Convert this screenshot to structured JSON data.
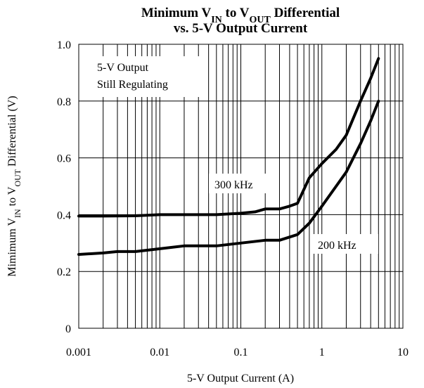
{
  "chart_data": {
    "type": "line",
    "title_line1": "Minimum V_IN to V_OUT Differential",
    "title_line2": "vs. 5-V Output Current",
    "title_parts": {
      "minimum": "Minimum V",
      "in_sub": "IN",
      "to_v": " to V",
      "out_sub": "OUT",
      "differential": " Differential",
      "line2": "vs. 5-V Output Current"
    },
    "xlabel": "5-V Output Current (A)",
    "ylabel_parts": {
      "prefix": "Mimimum V",
      "in_sub": "IN",
      "middle": " to V",
      "out_sub": "OUT",
      "suffix": "  Differential (V)"
    },
    "x_scale": "log",
    "xlim": [
      0.001,
      10
    ],
    "ylim": [
      0,
      1.0
    ],
    "x_ticks": [
      0.001,
      0.01,
      0.1,
      1,
      10
    ],
    "x_tick_labels": [
      "0.001",
      "0.01",
      "0.1",
      "1",
      "10"
    ],
    "y_ticks": [
      0,
      0.2,
      0.4,
      0.6,
      0.8,
      1.0
    ],
    "y_tick_labels": [
      "0",
      "0.2",
      "0.4",
      "0.6",
      "0.8",
      "1.0"
    ],
    "grid": "vertical log gridlines, horizontal at major ticks",
    "series": [
      {
        "name": "300 kHz",
        "x": [
          0.001,
          0.002,
          0.005,
          0.01,
          0.02,
          0.05,
          0.1,
          0.15,
          0.2,
          0.3,
          0.4,
          0.5,
          0.7,
          1,
          1.5,
          2,
          3,
          4,
          5
        ],
        "y": [
          0.395,
          0.395,
          0.396,
          0.4,
          0.4,
          0.4,
          0.405,
          0.41,
          0.42,
          0.42,
          0.43,
          0.44,
          0.53,
          0.58,
          0.63,
          0.68,
          0.8,
          0.88,
          0.95
        ]
      },
      {
        "name": "200 kHz",
        "x": [
          0.001,
          0.002,
          0.003,
          0.005,
          0.01,
          0.02,
          0.05,
          0.1,
          0.2,
          0.3,
          0.5,
          0.7,
          1,
          1.5,
          2,
          3,
          4,
          5
        ],
        "y": [
          0.26,
          0.265,
          0.27,
          0.27,
          0.28,
          0.29,
          0.29,
          0.3,
          0.31,
          0.31,
          0.33,
          0.37,
          0.43,
          0.5,
          0.55,
          0.65,
          0.73,
          0.8
        ]
      }
    ],
    "annotations": {
      "regulating_line1": "5-V Output",
      "regulating_line2": "Still Regulating",
      "label_300": "300 kHz",
      "label_200": "200 kHz"
    }
  }
}
